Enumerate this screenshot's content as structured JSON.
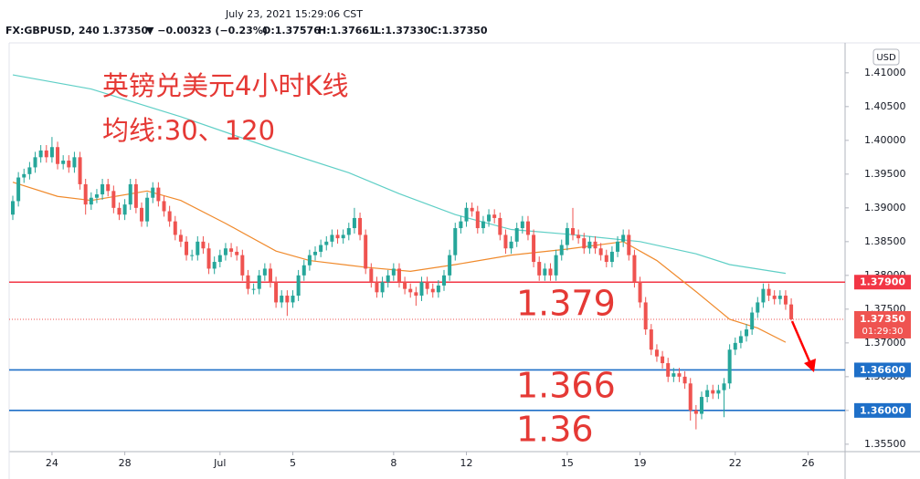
{
  "header": {
    "datetime": "July 23, 2021 15:29:06 CST",
    "symbol": "FX:GBPUSD, 240",
    "price": "1.37350",
    "change": "▼ −0.00323 (−0.23%)",
    "open": "O:1.37576",
    "high": "H:1.37661",
    "low": "L:1.37330",
    "close": "C:1.37350"
  },
  "chart_data": {
    "type": "candlestick",
    "currency": "USD",
    "annotations": [
      "英镑兑美元4小时K线",
      "均线:30、120",
      "1.379",
      "1.366",
      "1.36"
    ],
    "categories": [
      null,
      null,
      null,
      null,
      null,
      null,
      null,
      "24",
      null,
      null,
      null,
      null,
      null,
      null,
      null,
      null,
      null,
      null,
      null,
      null,
      "28",
      null,
      null,
      null,
      null,
      null,
      null,
      null,
      null,
      null,
      null,
      null,
      null,
      null,
      null,
      null,
      null,
      "Jul",
      null,
      null,
      null,
      null,
      null,
      null,
      null,
      null,
      null,
      null,
      null,
      null,
      "5",
      null,
      null,
      null,
      null,
      null,
      null,
      null,
      null,
      null,
      null,
      null,
      null,
      null,
      null,
      null,
      null,
      null,
      "8",
      null,
      null,
      null,
      null,
      null,
      null,
      null,
      null,
      null,
      null,
      null,
      null,
      "12",
      null,
      null,
      null,
      null,
      null,
      null,
      null,
      null,
      null,
      null,
      null,
      null,
      null,
      null,
      null,
      null,
      null,
      "15",
      null,
      null,
      null,
      null,
      null,
      null,
      null,
      null,
      null,
      null,
      null,
      null,
      "19",
      null,
      null,
      null,
      null,
      null,
      null,
      null,
      null,
      null,
      null,
      null,
      null,
      null,
      null,
      null,
      null,
      "22",
      null,
      null,
      null,
      null,
      null,
      null,
      null,
      null,
      null,
      null,
      null,
      null,
      "26"
    ],
    "open": [
      1.389,
      1.391,
      1.3945,
      1.395,
      1.396,
      1.3975,
      1.3985,
      1.3975,
      1.399,
      1.3965,
      1.397,
      1.396,
      1.3975,
      1.3935,
      1.3905,
      1.3915,
      1.392,
      1.3935,
      1.3925,
      1.39,
      1.389,
      1.3905,
      1.3935,
      1.39,
      1.388,
      1.3915,
      1.393,
      1.391,
      1.3895,
      1.388,
      1.386,
      1.385,
      1.383,
      1.383,
      1.385,
      1.384,
      1.381,
      1.382,
      1.383,
      1.384,
      1.3835,
      1.383,
      1.38,
      1.378,
      1.378,
      1.38,
      1.381,
      1.379,
      1.376,
      1.377,
      1.376,
      1.377,
      1.38,
      1.3815,
      1.383,
      1.3835,
      1.3845,
      1.385,
      1.386,
      1.3855,
      1.386,
      1.387,
      1.3885,
      1.386,
      1.381,
      1.379,
      1.3775,
      1.379,
      1.38,
      1.381,
      1.379,
      1.378,
      1.3775,
      1.377,
      1.379,
      1.378,
      1.3775,
      1.3785,
      1.38,
      1.383,
      1.387,
      1.388,
      1.39,
      1.3895,
      1.387,
      1.388,
      1.389,
      1.3885,
      1.386,
      1.384,
      1.385,
      1.387,
      1.388,
      1.386,
      1.382,
      1.38,
      1.381,
      1.38,
      1.383,
      1.3845,
      1.387,
      1.386,
      1.3855,
      1.384,
      1.385,
      1.384,
      1.383,
      1.382,
      1.3835,
      1.385,
      1.386,
      1.383,
      1.379,
      1.376,
      1.372,
      1.369,
      1.368,
      1.367,
      1.365,
      1.3655,
      1.365,
      1.364,
      1.36,
      1.3595,
      1.362,
      1.363,
      1.3625,
      1.363,
      1.364,
      1.369,
      1.37,
      1.371,
      1.372,
      1.3745,
      1.376,
      1.378,
      1.377,
      1.3765,
      1.377,
      1.3757,
      null,
      null,
      null
    ],
    "high": [
      1.3918,
      1.3953,
      1.3958,
      1.3968,
      1.3983,
      1.3993,
      1.3993,
      1.4005,
      1.3998,
      1.3978,
      1.3978,
      1.3983,
      1.3983,
      1.3943,
      1.3923,
      1.3928,
      1.3943,
      1.3943,
      1.3933,
      1.3908,
      1.3913,
      1.3943,
      1.3943,
      1.3908,
      1.3923,
      1.3938,
      1.3938,
      1.3918,
      1.3903,
      1.3888,
      1.3868,
      1.3858,
      1.3838,
      1.3858,
      1.3858,
      1.3848,
      1.3828,
      1.3838,
      1.3848,
      1.3848,
      1.3843,
      1.3838,
      1.3808,
      1.3788,
      1.3808,
      1.3818,
      1.3818,
      1.3798,
      1.3778,
      1.3778,
      1.3778,
      1.3808,
      1.3823,
      1.3838,
      1.3843,
      1.3853,
      1.3858,
      1.3868,
      1.3868,
      1.3868,
      1.3878,
      1.39,
      1.3893,
      1.3868,
      1.3818,
      1.3798,
      1.3798,
      1.3808,
      1.3818,
      1.3818,
      1.3798,
      1.3788,
      1.3783,
      1.3798,
      1.3798,
      1.3788,
      1.3793,
      1.3808,
      1.3838,
      1.3878,
      1.3888,
      1.3908,
      1.3908,
      1.3903,
      1.3888,
      1.3898,
      1.3898,
      1.3893,
      1.3868,
      1.3858,
      1.3878,
      1.3888,
      1.3888,
      1.3868,
      1.3828,
      1.3818,
      1.3818,
      1.3838,
      1.3853,
      1.3878,
      1.39,
      1.3868,
      1.3863,
      1.3858,
      1.3858,
      1.3848,
      1.3838,
      1.3843,
      1.3858,
      1.3868,
      1.3868,
      1.3838,
      1.3798,
      1.3768,
      1.3728,
      1.3698,
      1.3688,
      1.3678,
      1.3663,
      1.3663,
      1.3658,
      1.3648,
      1.3608,
      1.3628,
      1.3638,
      1.3638,
      1.3638,
      1.3648,
      1.3698,
      1.3708,
      1.3718,
      1.3728,
      1.3753,
      1.3768,
      1.3788,
      1.3788,
      1.3778,
      1.3778,
      1.3778,
      1.3766,
      null,
      null,
      null
    ],
    "low": [
      1.3882,
      1.3902,
      1.3937,
      1.3942,
      1.3952,
      1.3967,
      1.3967,
      1.3967,
      1.3957,
      1.3957,
      1.3952,
      1.3952,
      1.3927,
      1.389,
      1.3897,
      1.3907,
      1.3912,
      1.3917,
      1.3892,
      1.3882,
      1.3882,
      1.3897,
      1.3892,
      1.3872,
      1.3872,
      1.3907,
      1.3902,
      1.3887,
      1.3872,
      1.3852,
      1.3842,
      1.3822,
      1.3822,
      1.3822,
      1.3832,
      1.3802,
      1.3802,
      1.3812,
      1.3822,
      1.3827,
      1.3822,
      1.3792,
      1.3772,
      1.3772,
      1.3772,
      1.3792,
      1.3782,
      1.3752,
      1.3752,
      1.374,
      1.3752,
      1.3762,
      1.3792,
      1.3807,
      1.3822,
      1.3827,
      1.3837,
      1.3842,
      1.3847,
      1.3847,
      1.3852,
      1.3862,
      1.3852,
      1.3802,
      1.3782,
      1.3767,
      1.3767,
      1.3782,
      1.3792,
      1.3782,
      1.3772,
      1.3767,
      1.3755,
      1.3762,
      1.3772,
      1.3767,
      1.3767,
      1.3777,
      1.3792,
      1.3822,
      1.3862,
      1.3872,
      1.3887,
      1.3862,
      1.3862,
      1.3872,
      1.3877,
      1.3852,
      1.3832,
      1.3832,
      1.3842,
      1.3862,
      1.3852,
      1.3812,
      1.3792,
      1.3792,
      1.3792,
      1.3792,
      1.3822,
      1.3837,
      1.3852,
      1.3847,
      1.3832,
      1.3832,
      1.3832,
      1.3822,
      1.3812,
      1.3812,
      1.3827,
      1.3842,
      1.3822,
      1.3782,
      1.3752,
      1.3712,
      1.3682,
      1.3672,
      1.3662,
      1.3642,
      1.3642,
      1.3642,
      1.3632,
      1.3585,
      1.3572,
      1.3587,
      1.3612,
      1.3617,
      1.3617,
      1.359,
      1.3632,
      1.3682,
      1.3692,
      1.3702,
      1.3712,
      1.3737,
      1.3752,
      1.3762,
      1.3757,
      1.3757,
      1.3749,
      1.3733,
      null,
      null,
      null
    ],
    "close": [
      1.391,
      1.3945,
      1.395,
      1.396,
      1.3975,
      1.3985,
      1.3975,
      1.399,
      1.3965,
      1.397,
      1.396,
      1.3975,
      1.3935,
      1.3905,
      1.3915,
      1.392,
      1.3935,
      1.3925,
      1.39,
      1.389,
      1.3905,
      1.3935,
      1.39,
      1.388,
      1.3915,
      1.393,
      1.391,
      1.3895,
      1.388,
      1.386,
      1.385,
      1.383,
      1.383,
      1.385,
      1.384,
      1.381,
      1.382,
      1.383,
      1.384,
      1.3835,
      1.383,
      1.38,
      1.378,
      1.378,
      1.38,
      1.381,
      1.379,
      1.376,
      1.377,
      1.376,
      1.377,
      1.38,
      1.3815,
      1.383,
      1.3835,
      1.3845,
      1.385,
      1.386,
      1.3855,
      1.386,
      1.387,
      1.3885,
      1.386,
      1.381,
      1.379,
      1.3775,
      1.379,
      1.38,
      1.381,
      1.379,
      1.378,
      1.3775,
      1.377,
      1.379,
      1.378,
      1.3775,
      1.3785,
      1.38,
      1.383,
      1.387,
      1.388,
      1.39,
      1.3895,
      1.387,
      1.388,
      1.389,
      1.3885,
      1.386,
      1.384,
      1.385,
      1.387,
      1.388,
      1.386,
      1.382,
      1.38,
      1.381,
      1.38,
      1.383,
      1.3845,
      1.387,
      1.386,
      1.3855,
      1.384,
      1.385,
      1.384,
      1.383,
      1.382,
      1.3835,
      1.385,
      1.386,
      1.383,
      1.379,
      1.376,
      1.372,
      1.369,
      1.368,
      1.367,
      1.365,
      1.3655,
      1.365,
      1.364,
      1.36,
      1.3595,
      1.362,
      1.363,
      1.3625,
      1.363,
      1.364,
      1.369,
      1.37,
      1.371,
      1.372,
      1.3745,
      1.376,
      1.378,
      1.377,
      1.3765,
      1.377,
      1.3757,
      1.3735,
      null,
      null,
      null
    ],
    "up_color": "#26a69a",
    "down_color": "#ef5350",
    "moving_averages": [
      {
        "color": "#5fcfc6",
        "x": [
          0,
          14,
          30,
          45,
          60,
          69,
          79,
          89,
          99,
          112,
          122,
          128,
          138
        ],
        "values": [
          1.4097,
          1.4076,
          1.4035,
          1.3992,
          1.3952,
          1.3921,
          1.389,
          1.3868,
          1.3861,
          1.385,
          1.3832,
          1.3816,
          1.3803
        ]
      },
      {
        "color": "#f08a2c",
        "x": [
          0,
          8,
          14,
          24,
          30,
          38,
          47,
          53,
          63,
          71,
          79,
          89,
          99,
          109,
          115,
          122,
          128,
          133,
          138
        ],
        "values": [
          1.3938,
          1.3917,
          1.3911,
          1.3925,
          1.3911,
          1.3877,
          1.3836,
          1.3822,
          1.3812,
          1.3806,
          1.3816,
          1.383,
          1.3839,
          1.385,
          1.3822,
          1.3776,
          1.3735,
          1.3722,
          1.3701
        ]
      }
    ],
    "levels": [
      {
        "value": 1.379,
        "label": "1.37900",
        "color": "#f23645"
      },
      {
        "value": 1.366,
        "label": "1.36600",
        "color": "#1e6fc8"
      },
      {
        "value": 1.36,
        "label": "1.36000",
        "color": "#1e6fc8"
      }
    ],
    "last_price": {
      "value": 1.3735,
      "label": "1.37350",
      "countdown": "01:29:30",
      "color": "#ef5350"
    },
    "ylim": [
      1.3539,
      1.4143
    ],
    "yticks": [
      {
        "value": 1.41,
        "label": "1.41000"
      },
      {
        "value": 1.405,
        "label": "1.40500"
      },
      {
        "value": 1.4,
        "label": "1.40000"
      },
      {
        "value": 1.395,
        "label": "1.39500"
      },
      {
        "value": 1.39,
        "label": "1.39000"
      },
      {
        "value": 1.385,
        "label": "1.38500"
      },
      {
        "value": 1.38,
        "label": "1.38000"
      },
      {
        "value": 1.375,
        "label": "1.37500"
      },
      {
        "value": 1.37,
        "label": "1.37000"
      },
      {
        "value": 1.365,
        "label": "1.36500"
      },
      {
        "value": 1.36,
        "label": "1.36000"
      },
      {
        "value": 1.355,
        "label": "1.35500"
      }
    ],
    "grid": false
  }
}
